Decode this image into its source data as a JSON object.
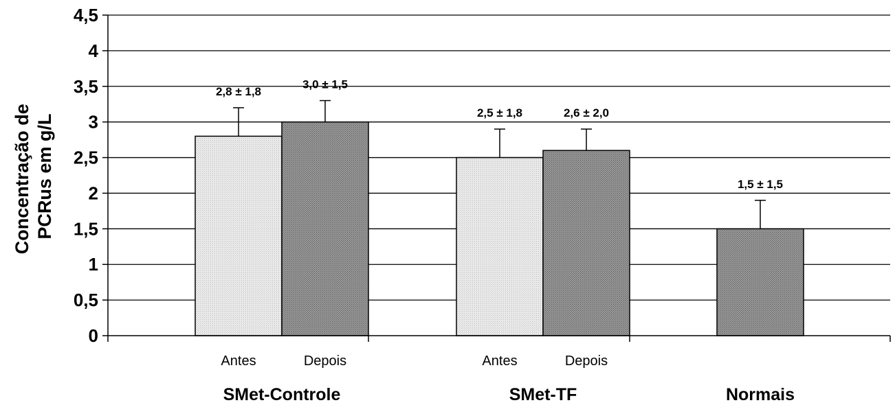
{
  "chart_data": {
    "type": "bar",
    "ylabel": [
      "Concentração de",
      "PCRus em g/L"
    ],
    "ylim": [
      0,
      4.5
    ],
    "y_ticks": [
      {
        "value": 0,
        "label": "0"
      },
      {
        "value": 0.5,
        "label": "0,5"
      },
      {
        "value": 1,
        "label": "1"
      },
      {
        "value": 1.5,
        "label": "1,5"
      },
      {
        "value": 2,
        "label": "2"
      },
      {
        "value": 2.5,
        "label": "2,5"
      },
      {
        "value": 3,
        "label": "3"
      },
      {
        "value": 3.5,
        "label": "3,5"
      },
      {
        "value": 4,
        "label": "4"
      },
      {
        "value": 4.5,
        "label": "4,5"
      }
    ],
    "grid": true,
    "groups": [
      {
        "name": "SMet-Controle",
        "bars": [
          {
            "label": "Antes",
            "value": 2.8,
            "error": 0.4,
            "data_label": "2,8 ± 1,8",
            "fill": "light"
          },
          {
            "label": "Depois",
            "value": 3.0,
            "error": 0.3,
            "data_label": "3,0 ± 1,5",
            "fill": "dark"
          }
        ]
      },
      {
        "name": "SMet-TF",
        "bars": [
          {
            "label": "Antes",
            "value": 2.5,
            "error": 0.4,
            "data_label": "2,5 ± 1,8",
            "fill": "light"
          },
          {
            "label": "Depois",
            "value": 2.6,
            "error": 0.3,
            "data_label": "2,6 ± 2,0",
            "fill": "dark"
          }
        ]
      },
      {
        "name": "Normais",
        "bars": [
          {
            "label": "",
            "value": 1.5,
            "error": 0.4,
            "data_label": "1,5 ± 1,5",
            "fill": "dark"
          }
        ]
      }
    ],
    "colors": {
      "light": "#e4e4e4",
      "dark": "#8a8a8a",
      "stroke": "#000000",
      "grid": "#000000"
    }
  }
}
